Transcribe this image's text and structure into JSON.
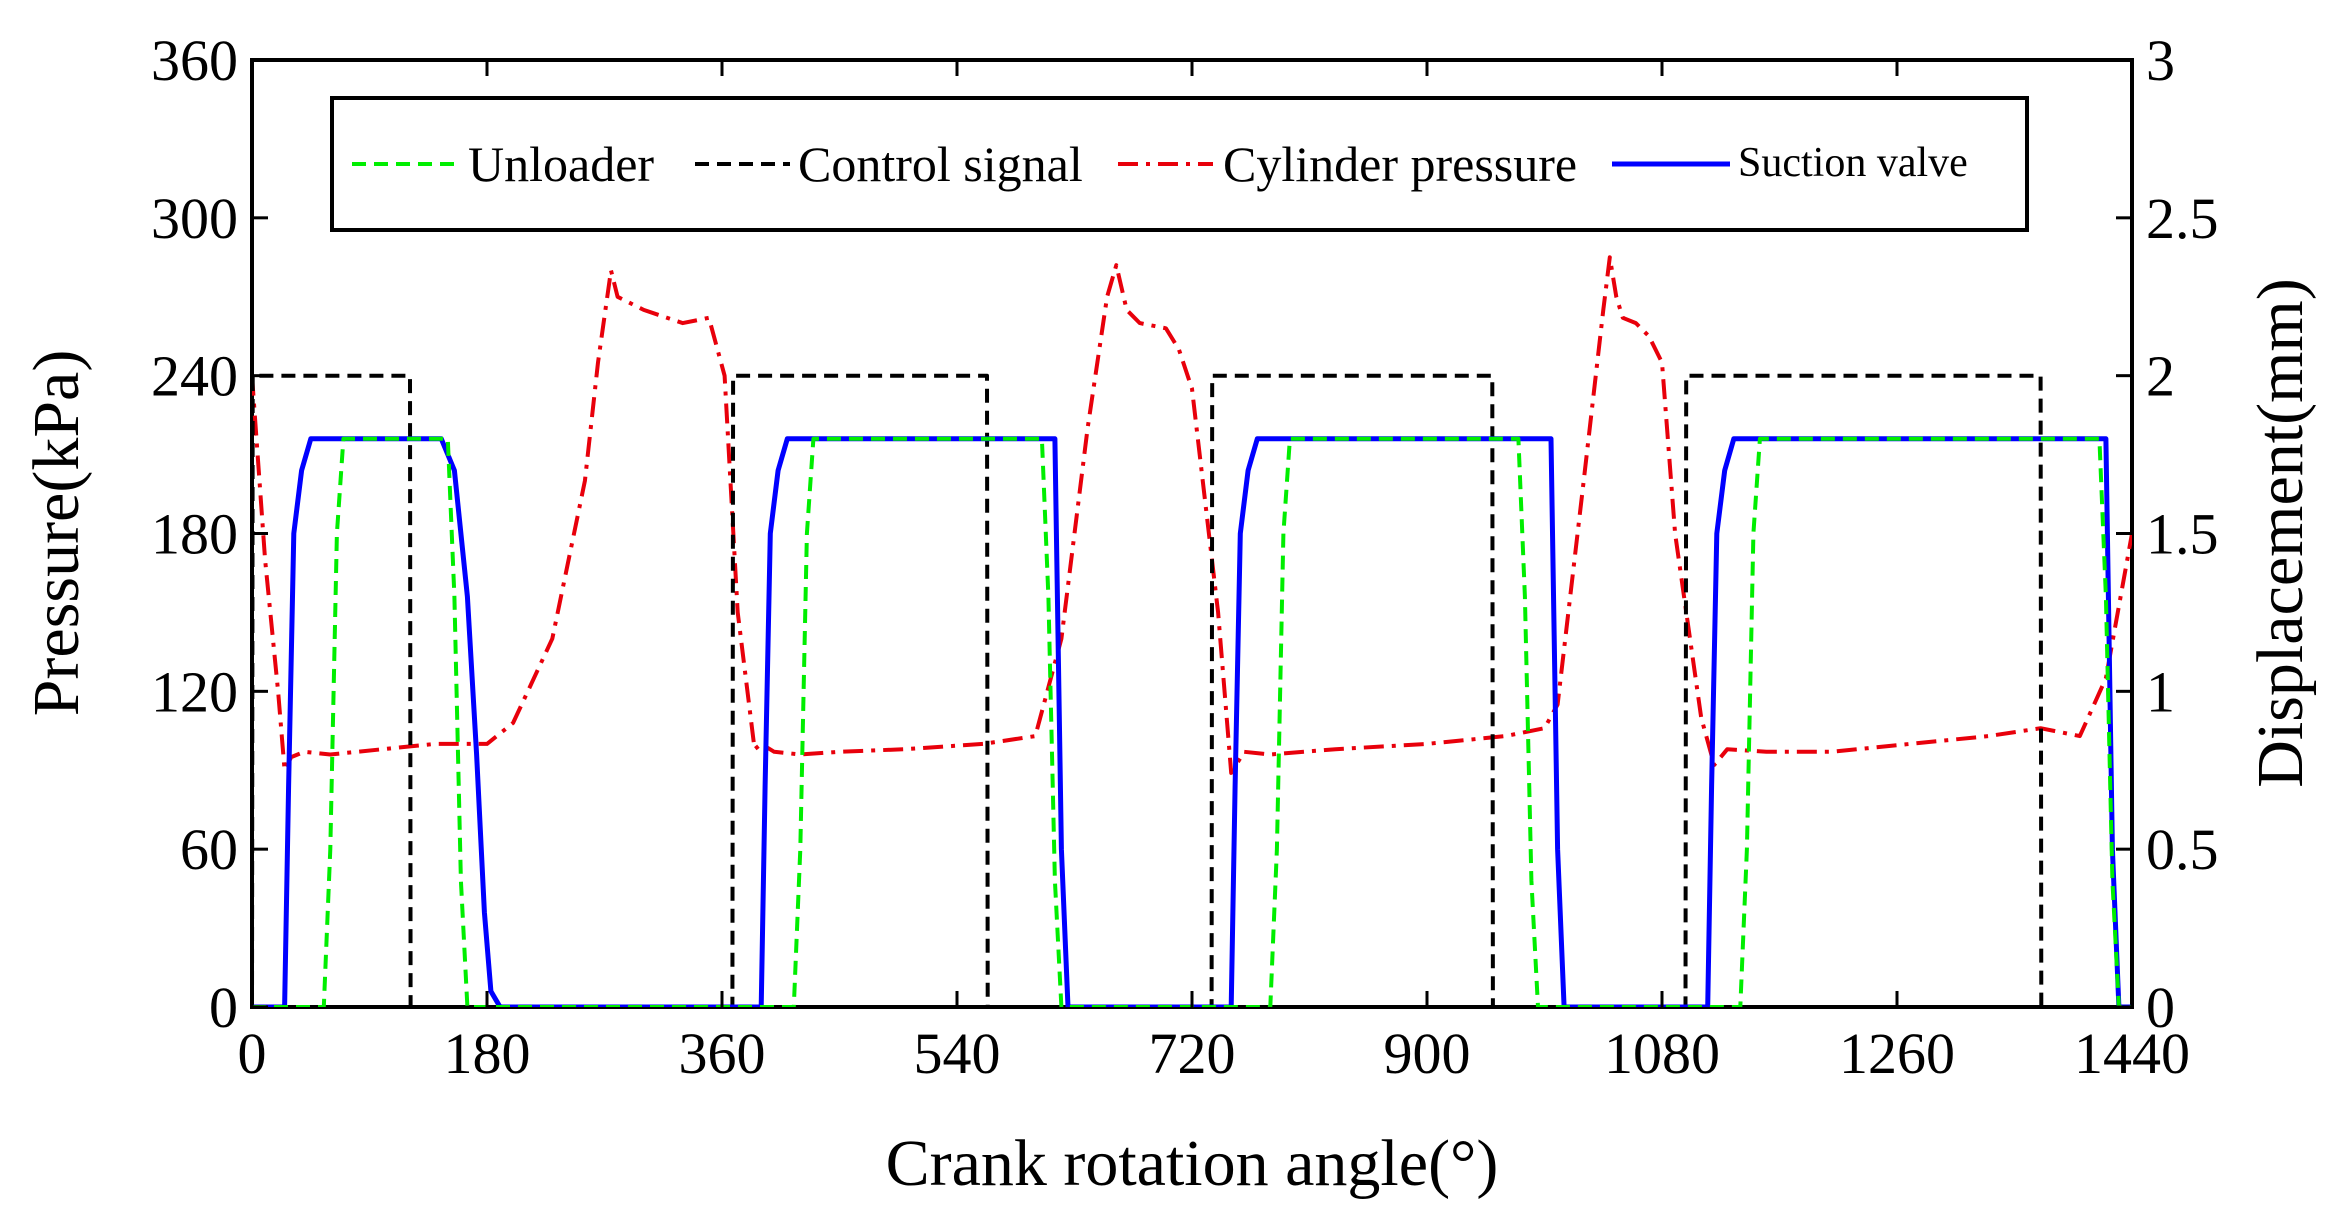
{
  "chart_data": {
    "type": "line",
    "title": "",
    "xlabel": "Crank rotation angle(°)",
    "ylabel_left": "Pressure(kPa)",
    "ylabel_right": "Displacement(mm)",
    "xlim": [
      0,
      1440
    ],
    "ylim_left": [
      0,
      360
    ],
    "ylim_right": [
      0,
      3
    ],
    "xticks": [
      0,
      180,
      360,
      540,
      720,
      900,
      1080,
      1260,
      1440
    ],
    "yticks_left": [
      0,
      60,
      120,
      180,
      240,
      300,
      360
    ],
    "yticks_right": [
      0,
      0.5,
      1,
      1.5,
      2,
      2.5,
      3
    ],
    "yticks_right_labels": [
      "0",
      "0.5",
      "1",
      "1.5",
      "2",
      "2.5",
      "3"
    ],
    "grid": false,
    "legend_position": "top",
    "series": [
      {
        "name": "Unloader",
        "axis": "right",
        "color": "#00ee00",
        "style": "dashed",
        "x": [
          0,
          55,
          60,
          65,
          70,
          150,
          155,
          160,
          165,
          370,
          415,
          420,
          425,
          430,
          605,
          610,
          615,
          620,
          740,
          780,
          785,
          790,
          795,
          970,
          975,
          980,
          985,
          1095,
          1140,
          1145,
          1150,
          1155,
          1415,
          1420,
          1425,
          1430,
          1440
        ],
        "y": [
          0,
          0,
          0.5,
          1.5,
          1.8,
          1.8,
          1.3,
          0.4,
          0,
          0,
          0,
          0.5,
          1.5,
          1.8,
          1.8,
          1.3,
          0.4,
          0,
          0,
          0,
          0.5,
          1.5,
          1.8,
          1.8,
          1.3,
          0.4,
          0,
          0,
          0,
          0.5,
          1.5,
          1.8,
          1.8,
          1.3,
          0.4,
          0,
          0
        ]
      },
      {
        "name": "Control signal",
        "axis": "right",
        "color": "#000000",
        "style": "dashed",
        "x": [
          0,
          0.5,
          121,
          121.5,
          368,
          368.5,
          563,
          563.5,
          735,
          735.5,
          950,
          950.5,
          1098,
          1098.5,
          1370,
          1370.5,
          1440
        ],
        "y": [
          0,
          2,
          2,
          0,
          0,
          2,
          2,
          0,
          0,
          2,
          2,
          0,
          0,
          2,
          2,
          0,
          0
        ]
      },
      {
        "name": "Cylinder pressure",
        "axis": "left",
        "color": "#e8000b",
        "style": "dashdot",
        "x": [
          0,
          10,
          20,
          25,
          30,
          40,
          60,
          100,
          140,
          180,
          200,
          230,
          255,
          265,
          275,
          280,
          300,
          330,
          350,
          362,
          372,
          385,
          390,
          400,
          420,
          450,
          500,
          560,
          600,
          620,
          640,
          655,
          662,
          670,
          680,
          700,
          710,
          720,
          740,
          750,
          760,
          780,
          830,
          900,
          960,
          990,
          1000,
          1020,
          1035,
          1040,
          1045,
          1050,
          1060,
          1070,
          1080,
          1090,
          1110,
          1120,
          1130,
          1160,
          1210,
          1270,
          1330,
          1370,
          1400,
          1420,
          1440
        ],
        "y": [
          240,
          170,
          120,
          90,
          95,
          97,
          96,
          98,
          100,
          100,
          108,
          140,
          200,
          245,
          280,
          270,
          265,
          260,
          262,
          240,
          150,
          98,
          100,
          97,
          96,
          97,
          98,
          100,
          103,
          140,
          220,
          270,
          282,
          265,
          260,
          258,
          250,
          235,
          150,
          89,
          97,
          96,
          98,
          100,
          103,
          106,
          115,
          200,
          265,
          285,
          270,
          262,
          260,
          255,
          245,
          180,
          110,
          92,
          98,
          97,
          97,
          100,
          103,
          106,
          103,
          125,
          180
        ]
      },
      {
        "name": "Suction valve",
        "axis": "right",
        "color": "#0000ff",
        "style": "solid",
        "x": [
          0,
          25,
          28,
          32,
          38,
          45,
          145,
          155,
          165,
          172,
          178,
          183,
          190,
          367,
          390,
          393,
          397,
          403,
          410,
          615,
          620,
          625,
          750,
          753,
          757,
          763,
          770,
          995,
          1000,
          1005,
          1115,
          1118,
          1122,
          1128,
          1135,
          1420,
          1425,
          1430,
          1440
        ],
        "y": [
          0,
          0,
          0.7,
          1.5,
          1.7,
          1.8,
          1.8,
          1.7,
          1.3,
          0.8,
          0.3,
          0.05,
          0,
          0,
          0,
          0.7,
          1.5,
          1.7,
          1.8,
          1.8,
          0.5,
          0,
          0,
          0.7,
          1.5,
          1.7,
          1.8,
          1.8,
          0.5,
          0,
          0,
          0.7,
          1.5,
          1.7,
          1.8,
          1.8,
          0.5,
          0,
          0
        ]
      }
    ]
  }
}
